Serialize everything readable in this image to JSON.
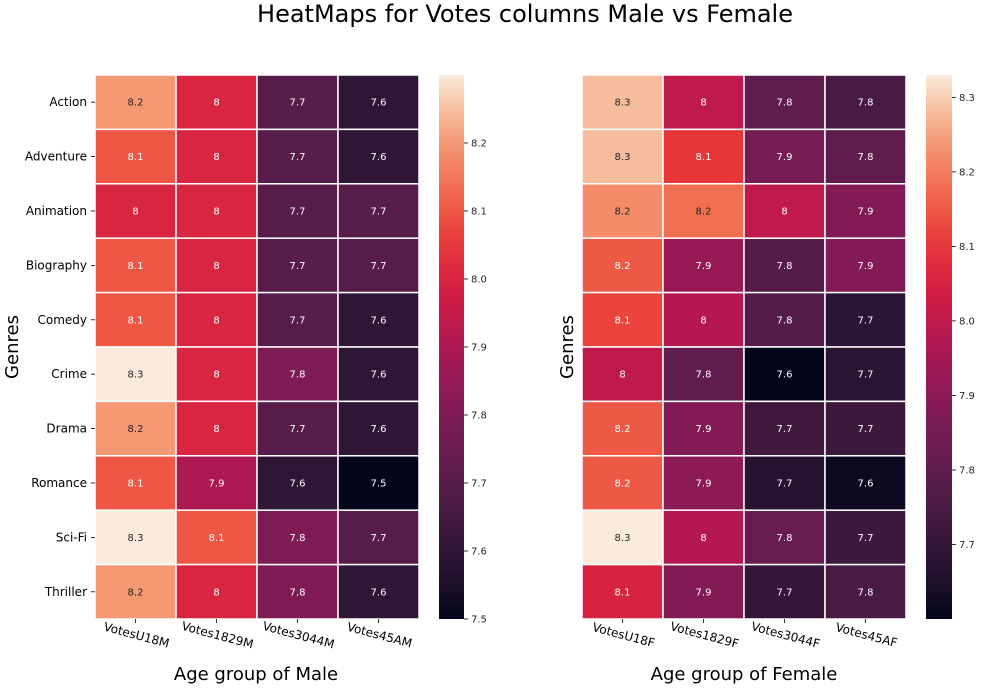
{
  "title": "HeatMaps for Votes columns Male vs Female",
  "chart_data": [
    {
      "type": "heatmap",
      "xlabel": "Age group of Male",
      "ylabel": "Genres",
      "rows": [
        "Action",
        "Adventure",
        "Animation",
        "Biography",
        "Comedy",
        "Crime",
        "Drama",
        "Romance",
        "Sci-Fi",
        "Thriller"
      ],
      "columns": [
        "VotesU18M",
        "Votes1829M",
        "Votes3044M",
        "Votes45AM"
      ],
      "values": [
        [
          8.2,
          8.0,
          7.7,
          7.6
        ],
        [
          8.1,
          8.0,
          7.7,
          7.6
        ],
        [
          8.0,
          8.0,
          7.7,
          7.7
        ],
        [
          8.1,
          8.0,
          7.7,
          7.7
        ],
        [
          8.1,
          8.0,
          7.7,
          7.6
        ],
        [
          8.3,
          8.0,
          7.8,
          7.6
        ],
        [
          8.2,
          8.0,
          7.7,
          7.6
        ],
        [
          8.1,
          7.9,
          7.6,
          7.5
        ],
        [
          8.3,
          8.1,
          7.8,
          7.7
        ],
        [
          8.2,
          8.0,
          7.8,
          7.6
        ]
      ],
      "annotations": [
        [
          "8.2",
          "8",
          "7.7",
          "7.6"
        ],
        [
          "8.1",
          "8",
          "7.7",
          "7.6"
        ],
        [
          "8",
          "8",
          "7.7",
          "7.7"
        ],
        [
          "8.1",
          "8",
          "7.7",
          "7.7"
        ],
        [
          "8.1",
          "8",
          "7.7",
          "7.6"
        ],
        [
          "8.3",
          "8",
          "7.8",
          "7.6"
        ],
        [
          "8.2",
          "8",
          "7.7",
          "7.6"
        ],
        [
          "8.1",
          "7.9",
          "7.6",
          "7.5"
        ],
        [
          "8.3",
          "8.1",
          "7.8",
          "7.7"
        ],
        [
          "8.2",
          "8",
          "7.8",
          "7.6"
        ]
      ],
      "colorbar": {
        "range": [
          7.5,
          8.3
        ],
        "ticks": [
          7.5,
          7.6,
          7.7,
          7.8,
          7.9,
          8.0,
          8.1,
          8.2
        ],
        "tick_labels": [
          "7.5",
          "7.6",
          "7.7",
          "7.8",
          "7.9",
          "8.0",
          "8.1",
          "8.2"
        ]
      }
    },
    {
      "type": "heatmap",
      "xlabel": "Age group of Female",
      "ylabel": "Genres",
      "rows": [
        "Action",
        "Adventure",
        "Animation",
        "Biography",
        "Comedy",
        "Crime",
        "Drama",
        "Romance",
        "Sci-Fi",
        "Thriller"
      ],
      "columns": [
        "VotesU18F",
        "Votes1829F",
        "Votes3044F",
        "Votes45AF"
      ],
      "values": [
        [
          8.28,
          8.0,
          7.8,
          7.75
        ],
        [
          8.28,
          8.1,
          7.85,
          7.8
        ],
        [
          8.22,
          8.18,
          8.0,
          7.88
        ],
        [
          8.15,
          7.92,
          7.78,
          7.88
        ],
        [
          8.12,
          7.98,
          7.78,
          7.68
        ],
        [
          8.0,
          7.8,
          7.6,
          7.68
        ],
        [
          8.15,
          7.88,
          7.73,
          7.72
        ],
        [
          8.15,
          7.9,
          7.67,
          7.62
        ],
        [
          8.33,
          7.98,
          7.82,
          7.72
        ],
        [
          8.05,
          7.88,
          7.7,
          7.75
        ]
      ],
      "annotations": [
        [
          "8.3",
          "8",
          "7.8",
          "7.8"
        ],
        [
          "8.3",
          "8.1",
          "7.9",
          "7.8"
        ],
        [
          "8.2",
          "8.2",
          "8",
          "7.9"
        ],
        [
          "8.2",
          "7.9",
          "7.8",
          "7.9"
        ],
        [
          "8.1",
          "8",
          "7.8",
          "7.7"
        ],
        [
          "8",
          "7.8",
          "7.6",
          "7.7"
        ],
        [
          "8.2",
          "7.9",
          "7.7",
          "7.7"
        ],
        [
          "8.2",
          "7.9",
          "7.7",
          "7.6"
        ],
        [
          "8.3",
          "8",
          "7.8",
          "7.7"
        ],
        [
          "8.1",
          "7.9",
          "7.7",
          "7.8"
        ]
      ],
      "colorbar": {
        "range": [
          7.6,
          8.33
        ],
        "ticks": [
          7.7,
          7.8,
          7.9,
          8.0,
          8.1,
          8.2,
          8.3
        ],
        "tick_labels": [
          "7.7",
          "7.8",
          "7.9",
          "8.0",
          "8.1",
          "8.2",
          "8.3"
        ]
      }
    }
  ]
}
